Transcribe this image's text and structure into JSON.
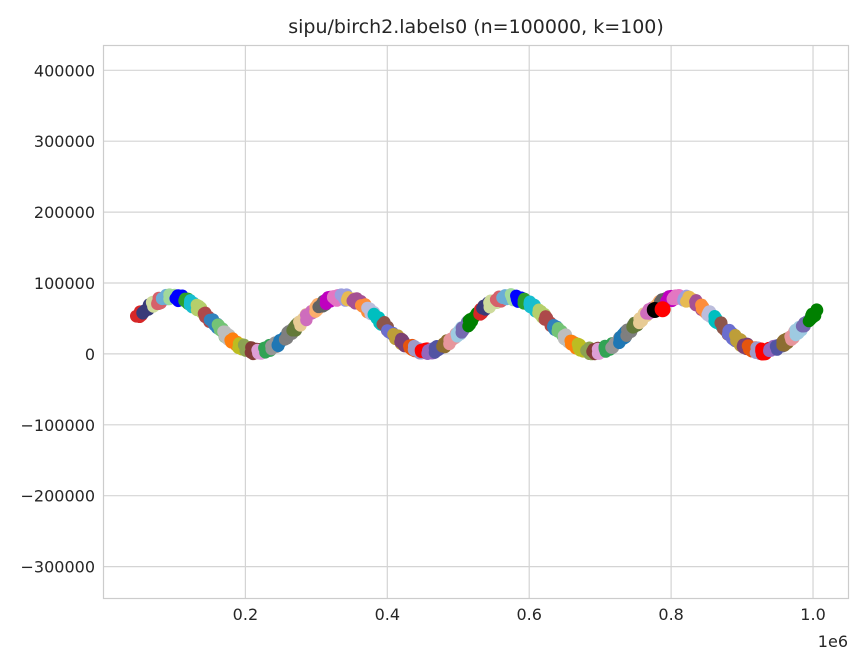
{
  "chart_data": {
    "type": "scatter",
    "title": "sipu/birch2.labels0 (n=100000, k=100)",
    "xlabel": "",
    "ylabel": "",
    "x_offset_label": "1e6",
    "xlim": [
      0.0,
      1.05
    ],
    "ylim": [
      -345000,
      435000
    ],
    "x_ticks": [
      0.2,
      0.4,
      0.6,
      0.8,
      1.0
    ],
    "x_tick_labels": [
      "0.2",
      "0.4",
      "0.6",
      "0.8",
      "1.0"
    ],
    "y_ticks": [
      -300000,
      -200000,
      -100000,
      0,
      100000,
      200000,
      300000,
      400000
    ],
    "y_tick_labels": [
      "−300000",
      "−200000",
      "−100000",
      "0",
      "100000",
      "200000",
      "300000",
      "400000"
    ],
    "grid": true,
    "curve": {
      "x_start": 0.05,
      "x_end": 1.0,
      "y_center": 42000,
      "amplitude": 38000,
      "period": 0.2375,
      "clusters": 100
    },
    "centroids": [
      {
        "x": 0.777,
        "y": 62000,
        "color": "#000000"
      },
      {
        "x": 0.788,
        "y": 63000,
        "color": "#ff0000"
      }
    ],
    "palette": [
      "#1f77b4",
      "#ff7f0e",
      "#2ca02c",
      "#d62728",
      "#9467bd",
      "#8c564b",
      "#e377c2",
      "#7f7f7f",
      "#bcbd22",
      "#17becf",
      "#393b79",
      "#5254a3",
      "#6b6ecf",
      "#9c9ede",
      "#637939",
      "#8ca252",
      "#b5cf6b",
      "#cedb9c",
      "#8c6d31",
      "#bd9e39",
      "#e7ba52",
      "#e7cb94",
      "#843c39",
      "#ad494a",
      "#d6616b",
      "#e7969c",
      "#7b4173",
      "#a55194",
      "#ce6dbd",
      "#de9ed6",
      "#3182bd",
      "#6baed6",
      "#9ecae1",
      "#e6550d",
      "#fd8d3c",
      "#fdae6b",
      "#31a354",
      "#74c476",
      "#a1d99b",
      "#756bb1",
      "#9e9ac8",
      "#bcbddc",
      "#636363",
      "#969696",
      "#bdbdbd",
      "#0000ff",
      "#008000",
      "#ff0000",
      "#00bfbf",
      "#bf00bf"
    ]
  }
}
